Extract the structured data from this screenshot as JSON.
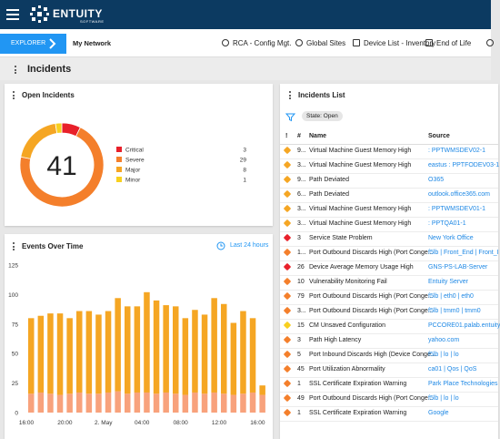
{
  "header": {
    "brand": "ENTUITY",
    "brand_sub": "SOFTWARE"
  },
  "nav": {
    "explorer": "EXPLORER",
    "context": "My Network",
    "tabs": [
      "RCA - Config Mgt.",
      "Global Sites",
      "Device List - Inventory",
      "End of Life"
    ]
  },
  "page_title": "Incidents",
  "chart_data": [
    {
      "type": "pie",
      "title": "Open Incidents",
      "center_label": 41,
      "categories": [
        "Critical",
        "Severe",
        "Major",
        "Minor"
      ],
      "values": [
        3,
        29,
        8,
        1
      ],
      "colors": [
        "#e8202a",
        "#f47f2b",
        "#f5a623",
        "#f8d01f"
      ]
    },
    {
      "type": "bar",
      "stacked": true,
      "title": "Events Over Time",
      "link": "Last 24 hours",
      "grid": false,
      "categories": [
        "16:00",
        null,
        null,
        null,
        "20:00",
        null,
        null,
        null,
        "2. May",
        null,
        null,
        null,
        "04:00",
        null,
        null,
        null,
        "08:00",
        null,
        null,
        null,
        "12:00",
        null,
        null,
        null,
        "16:00"
      ],
      "series": [
        {
          "color": "#f8a27c",
          "values": [
            16,
            17,
            16,
            15,
            16,
            17,
            16,
            16,
            17,
            18,
            16,
            17,
            17,
            16,
            17,
            16,
            15,
            17,
            16,
            17,
            16,
            15,
            16,
            17,
            15
          ]
        },
        {
          "color": "#f5a623",
          "values": [
            64,
            65,
            68,
            69,
            64,
            69,
            70,
            67,
            69,
            79,
            74,
            73,
            85,
            79,
            74,
            74,
            65,
            70,
            67,
            80,
            76,
            61,
            70,
            63,
            8
          ]
        }
      ],
      "ylim": [
        0,
        125
      ],
      "yticks": [
        0,
        25,
        50,
        75,
        100,
        125
      ]
    }
  ],
  "incidents_list": {
    "title": "Incidents List",
    "filter": "State: Open",
    "columns": [
      "!",
      "#",
      "Name",
      "Source"
    ],
    "rows": [
      [
        "9...",
        "Virtual Machine Guest Memory High",
        ": PPTWMSDEV02-1"
      ],
      [
        "3...",
        "Virtual Machine Guest Memory High",
        "eastus : PPTFODEV03-1"
      ],
      [
        "9...",
        "Path Deviated",
        "O365"
      ],
      [
        "6...",
        "Path Deviated",
        "outlook.office365.com"
      ],
      [
        "3...",
        "Virtual Machine Guest Memory High",
        ": PPTWMSDEV01-1"
      ],
      [
        "3...",
        "Virtual Machine Guest Memory High",
        ": PPTQA01-1"
      ],
      [
        "3",
        "Service State Problem",
        "New York Office"
      ],
      [
        "1...",
        "Port Outbound Discards High (Port Conge...",
        "f5lb | Front_End | Front_I"
      ],
      [
        "26",
        "Device Average Memory Usage High",
        "GNS-PS-LAB-Server"
      ],
      [
        "10",
        "Vulnerability Monitoring Fail",
        "Entuity Server"
      ],
      [
        "79",
        "Port Outbound Discards High (Port Conge...",
        "f5lb | eth0 | eth0"
      ],
      [
        "3...",
        "Port Outbound Discards High (Port Conge...",
        "f5lb | tmm0 | tmm0"
      ],
      [
        "15",
        "CM Unsaved Configuration",
        "PCCORE01.palab.entuity"
      ],
      [
        "3",
        "Path High Latency",
        "yahoo.com"
      ],
      [
        "5",
        "Port Inbound Discards High (Device Conge...",
        "f5lb | lo | lo"
      ],
      [
        "45",
        "Port Utilization Abnormality",
        "ca01 | Qos | QoS"
      ],
      [
        "1",
        "SSL Certificate Expiration Warning",
        "Park Place Technologies"
      ],
      [
        "49",
        "Port Outbound Discards High (Port Conge...",
        "f5lb | lo | lo"
      ],
      [
        "1",
        "SSL Certificate Expiration Warning",
        "Google"
      ]
    ],
    "row_icon_colors": [
      "#f5a623",
      "#f5a623",
      "#f5a623",
      "#f5a623",
      "#f5a623",
      "#f5a623",
      "#e8202a",
      "#f47f2b",
      "#e8202a",
      "#f47f2b",
      "#f47f2b",
      "#f47f2b",
      "#f8d01f",
      "#f47f2b",
      "#f47f2b",
      "#f47f2b",
      "#f47f2b",
      "#f47f2b",
      "#f47f2b"
    ]
  }
}
